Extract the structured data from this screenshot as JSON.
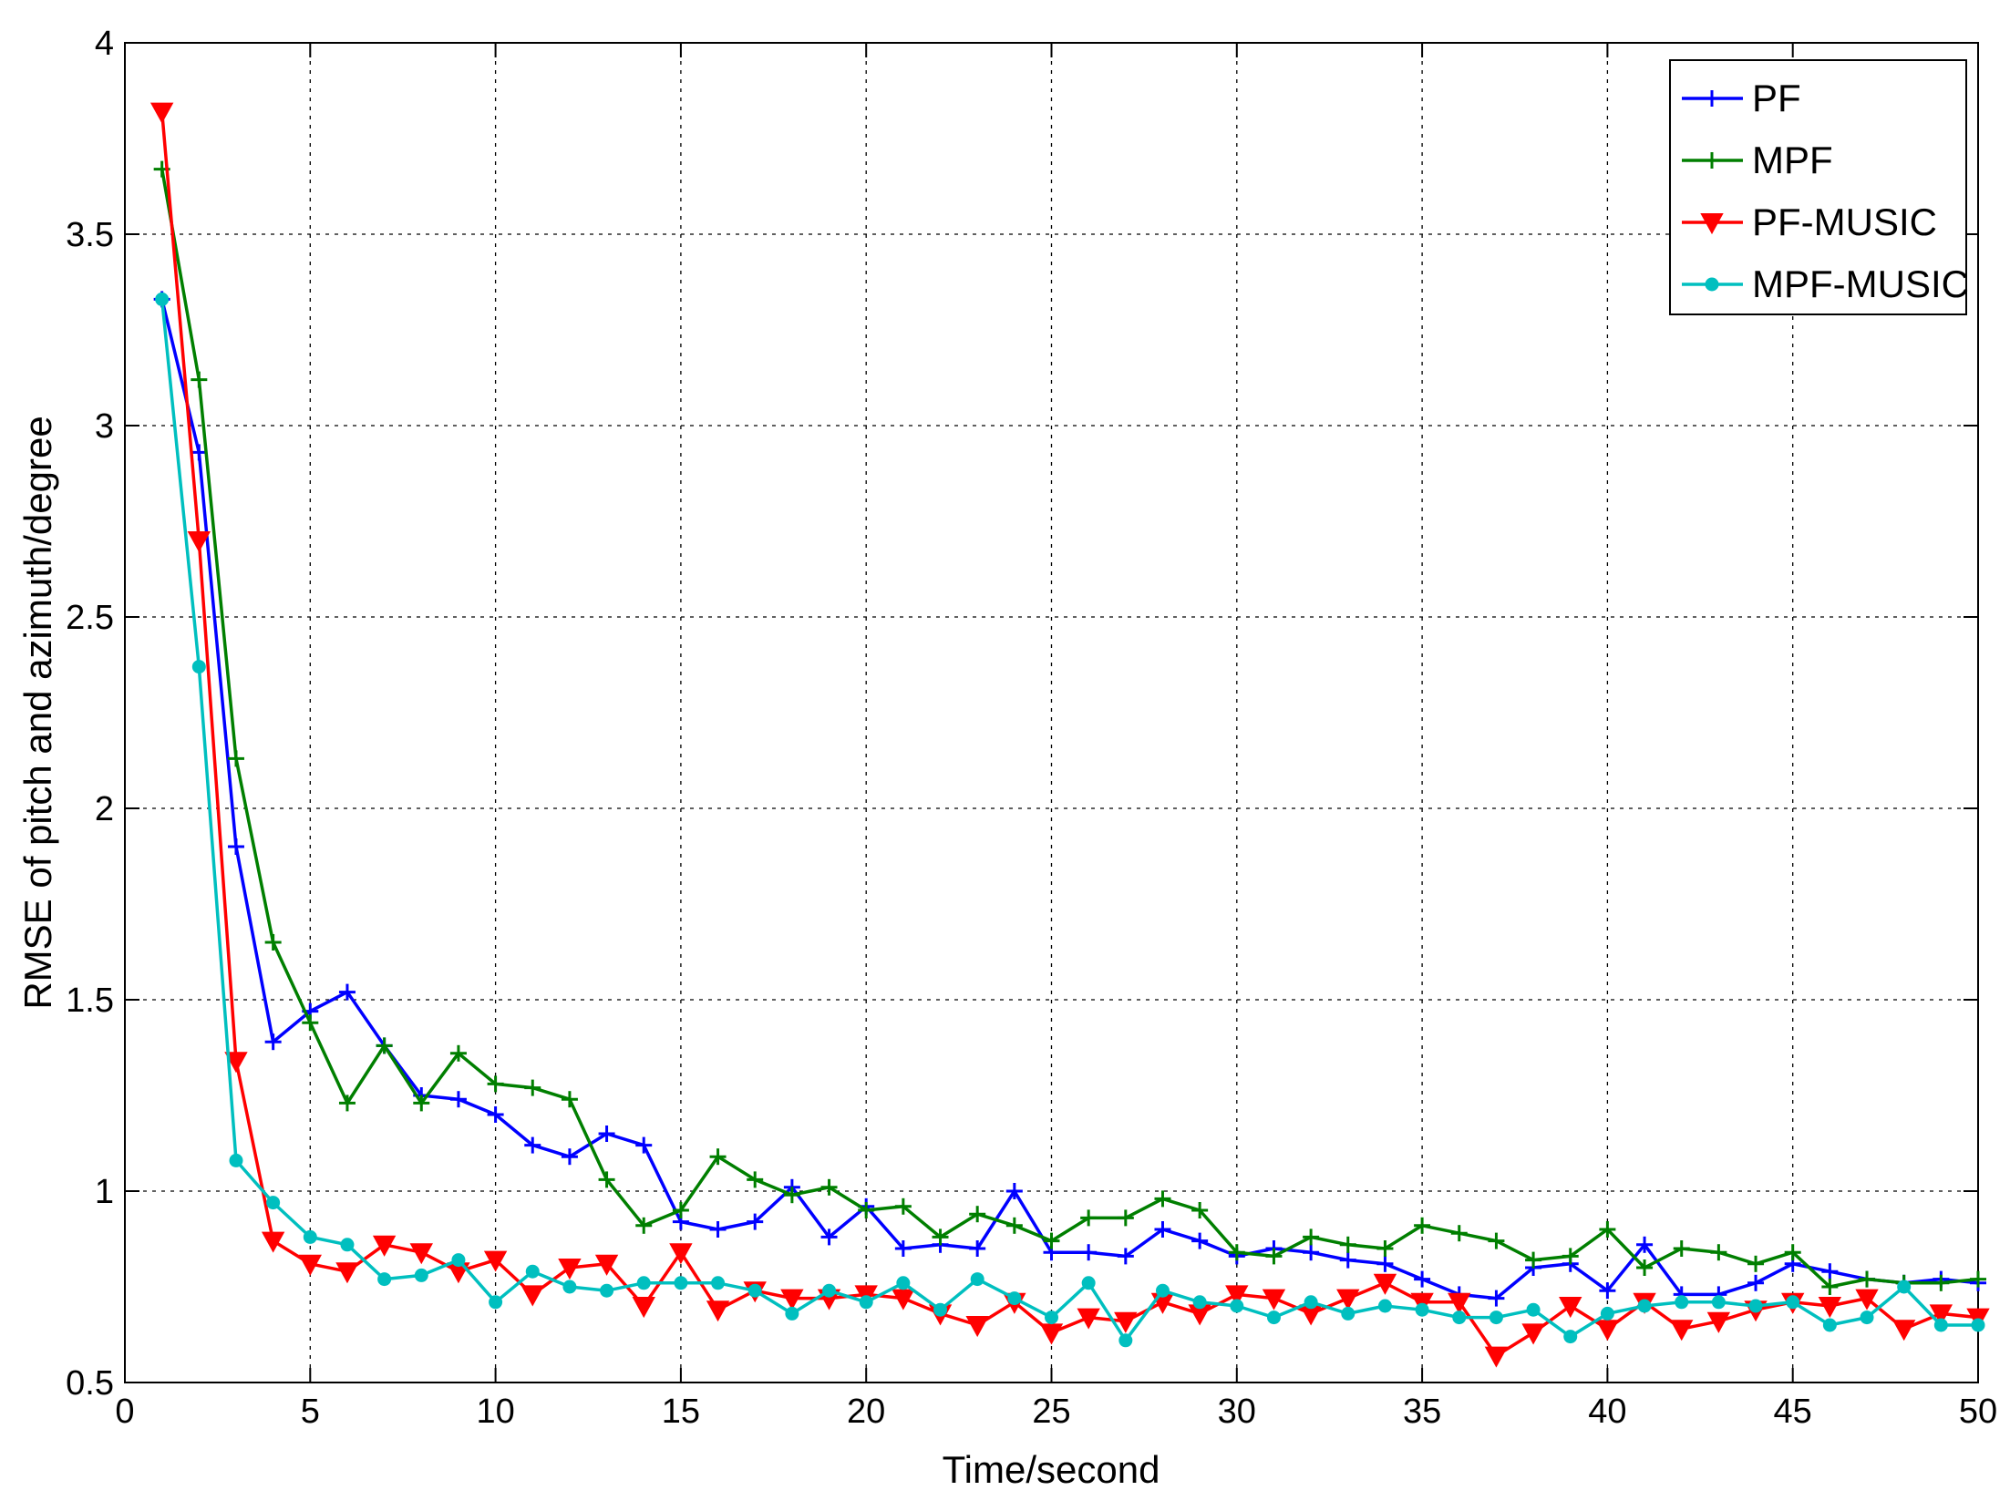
{
  "chart_data": {
    "type": "line",
    "title": "",
    "xlabel": "Time/second",
    "ylabel": "RMSE of pitch and azimuth/degree",
    "xlim": [
      0,
      50
    ],
    "ylim": [
      0.5,
      4
    ],
    "xticks": [
      0,
      5,
      10,
      15,
      20,
      25,
      30,
      35,
      40,
      45,
      50
    ],
    "yticks": [
      0.5,
      1,
      1.5,
      2,
      2.5,
      3,
      3.5,
      4
    ],
    "xtick_labels": [
      "0",
      "5",
      "10",
      "15",
      "20",
      "25",
      "30",
      "35",
      "40",
      "45",
      "50"
    ],
    "ytick_labels": [
      "0.5",
      "1",
      "1.5",
      "2",
      "2.5",
      "3",
      "3.5",
      "4"
    ],
    "grid": true,
    "legend_position": "top-right",
    "x": [
      1,
      2,
      3,
      4,
      5,
      6,
      7,
      8,
      9,
      10,
      11,
      12,
      13,
      14,
      15,
      16,
      17,
      18,
      19,
      20,
      21,
      22,
      23,
      24,
      25,
      26,
      27,
      28,
      29,
      30,
      31,
      32,
      33,
      34,
      35,
      36,
      37,
      38,
      39,
      40,
      41,
      42,
      43,
      44,
      45,
      46,
      47,
      48,
      49,
      50
    ],
    "series": [
      {
        "name": "PF",
        "color": "#0000ff",
        "marker": "plus",
        "values": [
          3.33,
          2.93,
          1.9,
          1.39,
          1.47,
          1.52,
          1.38,
          1.25,
          1.24,
          1.2,
          1.12,
          1.09,
          1.15,
          1.12,
          0.92,
          0.9,
          0.92,
          1.01,
          0.88,
          0.96,
          0.85,
          0.86,
          0.85,
          1.0,
          0.84,
          0.84,
          0.83,
          0.9,
          0.87,
          0.83,
          0.85,
          0.84,
          0.82,
          0.81,
          0.77,
          0.73,
          0.72,
          0.8,
          0.81,
          0.74,
          0.86,
          0.73,
          0.73,
          0.76,
          0.81,
          0.79,
          0.77,
          0.76,
          0.77,
          0.76
        ]
      },
      {
        "name": "MPF",
        "color": "#007f00",
        "marker": "plus",
        "values": [
          3.67,
          3.12,
          2.13,
          1.65,
          1.44,
          1.23,
          1.38,
          1.23,
          1.36,
          1.28,
          1.27,
          1.24,
          1.03,
          0.91,
          0.95,
          1.09,
          1.03,
          0.99,
          1.01,
          0.95,
          0.96,
          0.88,
          0.94,
          0.91,
          0.87,
          0.93,
          0.93,
          0.98,
          0.95,
          0.84,
          0.83,
          0.88,
          0.86,
          0.85,
          0.91,
          0.89,
          0.87,
          0.82,
          0.83,
          0.9,
          0.8,
          0.85,
          0.84,
          0.81,
          0.84,
          0.75,
          0.77,
          0.76,
          0.76,
          0.77
        ]
      },
      {
        "name": "PF-MUSIC",
        "color": "#ff0000",
        "marker": "triangle-down",
        "values": [
          3.82,
          2.7,
          1.34,
          0.87,
          0.81,
          0.79,
          0.86,
          0.84,
          0.79,
          0.82,
          0.73,
          0.8,
          0.81,
          0.7,
          0.84,
          0.69,
          0.74,
          0.72,
          0.72,
          0.73,
          0.72,
          0.68,
          0.65,
          0.71,
          0.63,
          0.67,
          0.66,
          0.71,
          0.68,
          0.73,
          0.72,
          0.68,
          0.72,
          0.76,
          0.71,
          0.71,
          0.57,
          0.63,
          0.7,
          0.64,
          0.71,
          0.64,
          0.66,
          0.69,
          0.71,
          0.7,
          0.72,
          0.64,
          0.68,
          0.67
        ]
      },
      {
        "name": "MPF-MUSIC",
        "color": "#00bfbf",
        "marker": "dot",
        "values": [
          3.33,
          2.37,
          1.08,
          0.97,
          0.88,
          0.86,
          0.77,
          0.78,
          0.82,
          0.71,
          0.79,
          0.75,
          0.74,
          0.76,
          0.76,
          0.76,
          0.74,
          0.68,
          0.74,
          0.71,
          0.76,
          0.69,
          0.77,
          0.72,
          0.67,
          0.76,
          0.61,
          0.74,
          0.71,
          0.7,
          0.67,
          0.71,
          0.68,
          0.7,
          0.69,
          0.67,
          0.67,
          0.69,
          0.62,
          0.68,
          0.7,
          0.71,
          0.71,
          0.7,
          0.71,
          0.65,
          0.67,
          0.75,
          0.65,
          0.65
        ]
      }
    ]
  }
}
